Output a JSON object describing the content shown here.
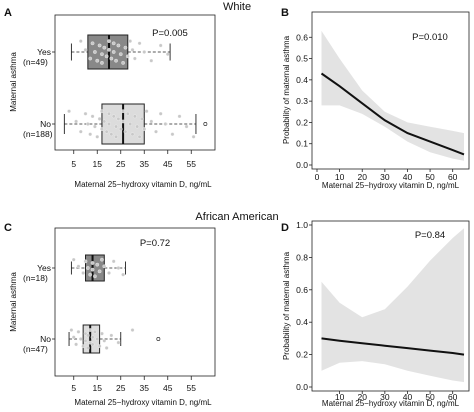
{
  "group_titles": {
    "white": "White",
    "african_american": "African  American"
  },
  "chart_data": [
    {
      "panel": "A",
      "type": "box",
      "categories": [
        "Yes",
        "No"
      ],
      "category_counts": [
        "(n=49)",
        "(n=188)"
      ],
      "xlabel": "Maternal 25−hydroxy vitamin D, ng/mL",
      "ylabel": "Maternal asthma",
      "xlim": [
        0,
        60
      ],
      "xticks": [
        5,
        15,
        25,
        35,
        45,
        55
      ],
      "pvalue_label": "P=0.005",
      "box_fill": {
        "Yes": "#888888",
        "No": "#dcdcdc"
      },
      "boxes": [
        {
          "category": "Yes",
          "whisker_low": 4,
          "q1": 11,
          "median": 20,
          "q3": 28,
          "whisker_high": 46
        },
        {
          "category": "No",
          "whisker_low": 1,
          "q1": 17,
          "median": 26,
          "q3": 35,
          "whisker_high": 57,
          "outliers": [
            61
          ]
        }
      ],
      "jitter_points": {
        "Yes": [
          8,
          10,
          12,
          13,
          14,
          15,
          16,
          17,
          17,
          18,
          19,
          20,
          20,
          21,
          22,
          22,
          23,
          24,
          25,
          26,
          27,
          28,
          29,
          30,
          31,
          33,
          35,
          38,
          42,
          45
        ],
        "No": [
          3,
          6,
          8,
          10,
          11,
          12,
          13,
          14,
          15,
          16,
          17,
          17,
          18,
          19,
          20,
          20,
          21,
          22,
          23,
          23,
          24,
          25,
          26,
          26,
          27,
          28,
          29,
          30,
          31,
          32,
          33,
          34,
          35,
          36,
          38,
          40,
          42,
          44,
          47,
          50,
          53,
          56
        ]
      }
    },
    {
      "panel": "B",
      "type": "line",
      "xlabel": "Maternal 25−hydroxy vitamin D, ng/mL",
      "ylabel": "Probability of maternal asthma",
      "xlim": [
        0,
        65
      ],
      "ylim": [
        0,
        0.7
      ],
      "xticks": [
        0,
        10,
        20,
        30,
        40,
        50,
        60
      ],
      "yticks": [
        0.0,
        0.1,
        0.2,
        0.3,
        0.4,
        0.5,
        0.6
      ],
      "pvalue_label": "P=0.010",
      "x": [
        2,
        10,
        20,
        30,
        40,
        50,
        60,
        65
      ],
      "y": [
        0.43,
        0.37,
        0.29,
        0.21,
        0.15,
        0.11,
        0.07,
        0.05
      ],
      "ci_lower": [
        0.28,
        0.28,
        0.24,
        0.18,
        0.11,
        0.06,
        0.03,
        0.02
      ],
      "ci_upper": [
        0.63,
        0.5,
        0.35,
        0.25,
        0.2,
        0.18,
        0.16,
        0.15
      ]
    },
    {
      "panel": "C",
      "type": "box",
      "categories": [
        "Yes",
        "No"
      ],
      "category_counts": [
        "(n=18)",
        "(n=47)"
      ],
      "xlabel": "Maternal 25−hydroxy vitamin D, ng/mL",
      "ylabel": "Maternal asthma",
      "xlim": [
        0,
        60
      ],
      "xticks": [
        5,
        15,
        25,
        35,
        45,
        55
      ],
      "pvalue_label": "P=0.72",
      "box_fill": {
        "Yes": "#888888",
        "No": "#dcdcdc"
      },
      "boxes": [
        {
          "category": "Yes",
          "whisker_low": 4,
          "q1": 10,
          "median": 13,
          "q3": 18,
          "whisker_high": 27
        },
        {
          "category": "No",
          "whisker_low": 3,
          "q1": 9,
          "median": 12,
          "q3": 16,
          "whisker_high": 25,
          "outliers": [
            41
          ]
        }
      ],
      "jitter_points": {
        "Yes": [
          5,
          7,
          9,
          10,
          11,
          12,
          13,
          13,
          14,
          15,
          16,
          17,
          18,
          20,
          22,
          24,
          26
        ],
        "No": [
          4,
          5,
          6,
          7,
          8,
          9,
          10,
          10,
          11,
          11,
          12,
          12,
          13,
          13,
          14,
          15,
          16,
          17,
          18,
          19,
          21,
          24,
          30
        ]
      }
    },
    {
      "panel": "D",
      "type": "line",
      "xlabel": "Maternal 25−hydroxy vitamin D, ng/mL",
      "ylabel": "Probability of maternal asthma",
      "xlim": [
        0,
        65
      ],
      "ylim": [
        0,
        1.0
      ],
      "xticks": [
        10,
        20,
        30,
        40,
        50,
        60
      ],
      "yticks": [
        0.0,
        0.2,
        0.4,
        0.6,
        0.8,
        1.0
      ],
      "pvalue_label": "P=0.84",
      "x": [
        2,
        10,
        20,
        30,
        40,
        50,
        60,
        65
      ],
      "y": [
        0.3,
        0.285,
        0.27,
        0.255,
        0.24,
        0.225,
        0.21,
        0.2
      ],
      "ci_lower": [
        0.1,
        0.15,
        0.16,
        0.14,
        0.1,
        0.07,
        0.04,
        0.03
      ],
      "ci_upper": [
        0.65,
        0.52,
        0.43,
        0.48,
        0.62,
        0.78,
        0.92,
        0.98
      ]
    }
  ]
}
